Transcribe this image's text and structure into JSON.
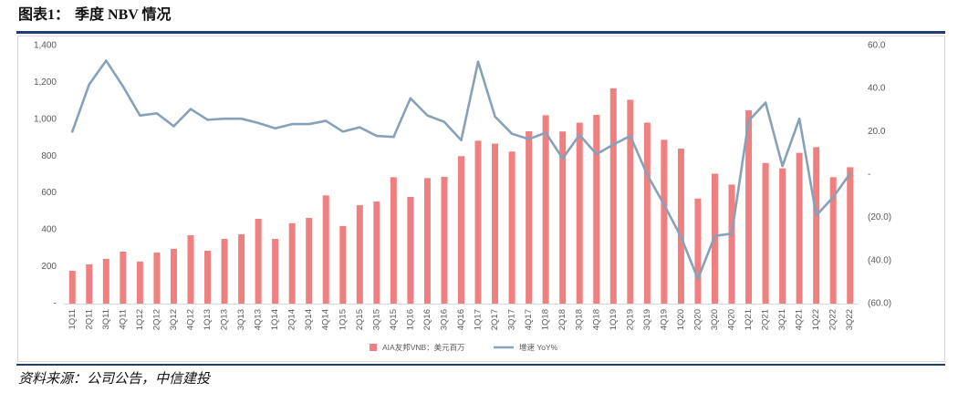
{
  "header": {
    "figure_label": "图表1：",
    "title": "季度 NBV 情况"
  },
  "footer": {
    "source": "资料来源：公司公告，中信建投"
  },
  "colors": {
    "rule": "#1F3E72",
    "bar": "#F08080",
    "line": "#87A1B9",
    "axis": "#D9D9D9",
    "frame": "#D9D9D9",
    "tick_text": "#595959"
  },
  "chart_data": {
    "type": "bar",
    "categories": [
      "1Q11",
      "2Q11",
      "3Q11",
      "4Q11",
      "1Q12",
      "2Q12",
      "3Q12",
      "4Q12",
      "1Q13",
      "2Q13",
      "3Q13",
      "4Q13",
      "1Q14",
      "2Q14",
      "3Q14",
      "4Q14",
      "1Q15",
      "2Q15",
      "3Q15",
      "4Q15",
      "1Q16",
      "2Q16",
      "3Q16",
      "4Q16",
      "1Q17",
      "2Q17",
      "3Q17",
      "4Q17",
      "1Q18",
      "2Q18",
      "3Q18",
      "4Q18",
      "1Q19",
      "2Q19",
      "3Q19",
      "4Q19",
      "1Q20",
      "2Q20",
      "3Q20",
      "4Q20",
      "1Q21",
      "2Q21",
      "3Q21",
      "4Q21",
      "1Q22",
      "2Q22",
      "3Q22"
    ],
    "series": [
      {
        "name": "AIA友邦VNB：美元百万",
        "type": "bar",
        "values": [
          178,
          213,
          243,
          282,
          228,
          277,
          297,
          371,
          287,
          351,
          376,
          460,
          351,
          436,
          465,
          587,
          421,
          534,
          554,
          686,
          579,
          681,
          688,
          800,
          884,
          868,
          825,
          935,
          1022,
          934,
          982,
          1024,
          1168,
          1106,
          982,
          889,
          841,
          570,
          705,
          646,
          1049,
          763,
          734,
          818,
          849,
          686,
          740
        ]
      },
      {
        "name": "增速 YoY%",
        "type": "line",
        "values": [
          20,
          42,
          53,
          41,
          27.5,
          28.5,
          22.5,
          30.5,
          25.5,
          26,
          26,
          24,
          21.5,
          23.5,
          23.5,
          25,
          20,
          22,
          18,
          17.5,
          35.5,
          27.5,
          24.5,
          16,
          52.5,
          27,
          19,
          16.5,
          19.5,
          7.5,
          18.5,
          9.5,
          14,
          18,
          0,
          -14,
          -29,
          -48.5,
          -28.5,
          -27.5,
          25,
          33.5,
          4,
          26,
          -19,
          -10.5,
          0.5
        ]
      }
    ],
    "y_left": {
      "range": [
        0,
        1400
      ],
      "step": 200,
      "tick_labels": [
        "-",
        "200",
        "400",
        "600",
        "800",
        "1,000",
        "1,200",
        "1,400"
      ]
    },
    "y_right": {
      "range": [
        -60,
        60
      ],
      "step": 20,
      "tick_labels": [
        "(60.0)",
        "(40.0)",
        "(20.0)",
        "-",
        "20.0",
        "40.0",
        "60.0"
      ]
    },
    "grid": false,
    "legend": "bottom"
  }
}
